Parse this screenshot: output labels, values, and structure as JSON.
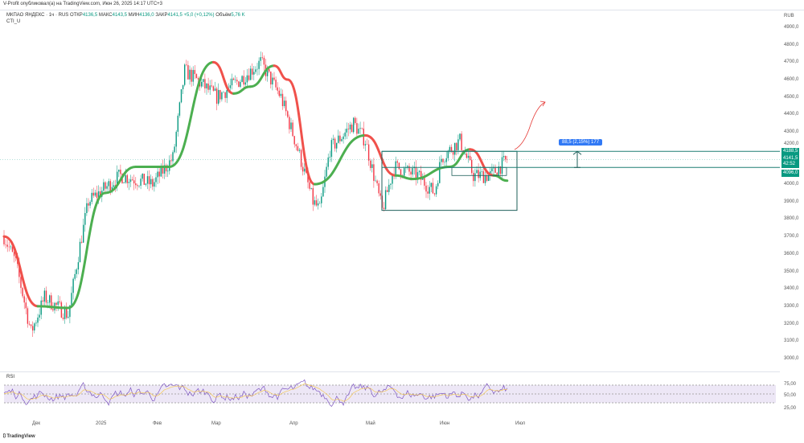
{
  "header": {
    "publisher": "V-Profit опубликовал(а) на TradingView.com, Июн 26, 2025 14:17 UTC+3",
    "symbol": "МКПАО ЯНДЕКС · 1ч · RUS",
    "open_label": "ОТКР",
    "open": "4136,5",
    "high_label": "МАКС",
    "high": "4143,5",
    "low_label": "МИН",
    "low": "4136,0",
    "close_label": "ЗАКР",
    "close": "4141,5",
    "change": "+5,0 (+0,12%)",
    "vol_label": "Объём",
    "vol": "5,76 K",
    "indicator": "CTI_U"
  },
  "currency": "RUB",
  "price_labels": [
    "4900,0",
    "4800,0",
    "4700,0",
    "4600,0",
    "4500,0",
    "4400,0",
    "4300,0",
    "4200,0",
    "4000,0",
    "3900,0",
    "3800,0",
    "3700,0",
    "3600,0",
    "3500,0",
    "3400,0",
    "3300,0",
    "3200,0",
    "3100,0",
    "3000,0"
  ],
  "tags": {
    "upper": "4188,5",
    "last": "4141,5",
    "countdown": "42:52",
    "lower": "4096,0"
  },
  "measure": "88,5 (2,15%) 177",
  "rsi": {
    "label": "RSI",
    "levels": [
      "75,00",
      "50,00",
      "25,00"
    ]
  },
  "time_labels": [
    "Дек",
    "2025",
    "Фев",
    "Мар",
    "Апр",
    "Май",
    "Июн",
    "Июл"
  ],
  "footer": "TradingView",
  "colors": {
    "up": "#089981",
    "down": "#f23645",
    "cti_up": "#4caf50",
    "cti_down": "#f0514b",
    "rsi": "#7e57c2"
  },
  "chart_data": {
    "type": "candlestick",
    "ylim": [
      3000,
      4900
    ],
    "price_path": [
      [
        0,
        3700
      ],
      [
        7,
        3550
      ],
      [
        16,
        3150
      ],
      [
        24,
        3350
      ],
      [
        38,
        3250
      ],
      [
        45,
        3650
      ],
      [
        50,
        3900
      ],
      [
        69,
        4050
      ],
      [
        88,
        4000
      ],
      [
        100,
        4150
      ],
      [
        107,
        4650
      ],
      [
        114,
        4600
      ],
      [
        126,
        4500
      ],
      [
        133,
        4550
      ],
      [
        140,
        4600
      ],
      [
        152,
        4700
      ],
      [
        164,
        4500
      ],
      [
        174,
        4200
      ],
      [
        183,
        3900
      ],
      [
        187,
        3850
      ],
      [
        193,
        4200
      ],
      [
        207,
        4350
      ],
      [
        214,
        4250
      ],
      [
        224,
        3850
      ],
      [
        231,
        4100
      ],
      [
        245,
        4050
      ],
      [
        255,
        3950
      ],
      [
        259,
        4150
      ],
      [
        270,
        4250
      ],
      [
        278,
        4050
      ],
      [
        288,
        4050
      ],
      [
        298,
        4140
      ]
    ],
    "cti": [
      [
        0,
        3700,
        "d"
      ],
      [
        20,
        3300,
        "d"
      ],
      [
        38,
        3290,
        "g"
      ],
      [
        60,
        3950,
        "g"
      ],
      [
        78,
        4100,
        "g"
      ],
      [
        98,
        4100,
        "g"
      ],
      [
        124,
        4700,
        "g"
      ],
      [
        136,
        4520,
        "d"
      ],
      [
        146,
        4560,
        "g"
      ],
      [
        160,
        4680,
        "g"
      ],
      [
        168,
        4600,
        "d"
      ],
      [
        184,
        4000,
        "d"
      ],
      [
        214,
        4280,
        "g"
      ],
      [
        232,
        4050,
        "d"
      ],
      [
        242,
        4030,
        "g"
      ],
      [
        264,
        4100,
        "g"
      ],
      [
        276,
        4200,
        "g"
      ],
      [
        290,
        4050,
        "d"
      ],
      [
        298,
        4020,
        "g"
      ]
    ]
  }
}
